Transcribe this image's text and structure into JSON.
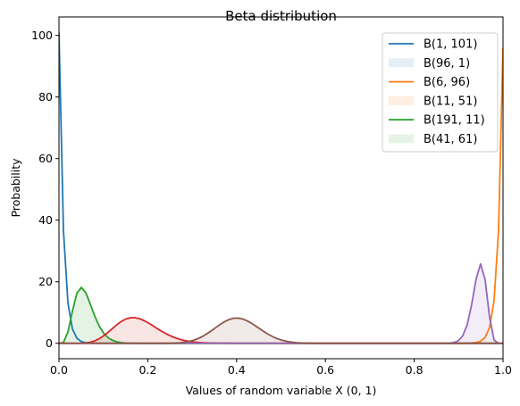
{
  "chart_data": {
    "type": "line",
    "title": "Beta distribution",
    "xlabel": "Values of random variable X (0, 1)",
    "ylabel": "Probability",
    "xlim": [
      0,
      1
    ],
    "ylim": [
      -5,
      106
    ],
    "x_ticks": [
      "0.0",
      "0.2",
      "0.4",
      "0.6",
      "0.8",
      "1.0"
    ],
    "y_ticks": [
      "0",
      "20",
      "40",
      "60",
      "80",
      "100"
    ],
    "grid": false,
    "legend_position": "top-right",
    "legend": [
      {
        "label": "B(1, 101)",
        "kind": "line",
        "color": "#1f77b4"
      },
      {
        "label": "B(96, 1)",
        "kind": "fill",
        "color": "#1f77b4"
      },
      {
        "label": "B(6, 96)",
        "kind": "line",
        "color": "#ff7f0e"
      },
      {
        "label": "B(11, 51)",
        "kind": "fill",
        "color": "#ff7f0e"
      },
      {
        "label": "B(191, 11)",
        "kind": "line",
        "color": "#2ca02c"
      },
      {
        "label": "B(41, 61)",
        "kind": "fill",
        "color": "#2ca02c"
      }
    ],
    "series": [
      {
        "alpha": 1,
        "beta": 101,
        "color": "#1f77b4",
        "filled": false
      },
      {
        "alpha": 96,
        "beta": 1,
        "color": "#ff7f0e",
        "filled": false
      },
      {
        "alpha": 6,
        "beta": 96,
        "color": "#2ca02c",
        "filled": true
      },
      {
        "alpha": 11,
        "beta": 51,
        "color": "#d62728",
        "filled": true
      },
      {
        "alpha": 191,
        "beta": 11,
        "color": "#9467bd",
        "filled": true
      },
      {
        "alpha": 41,
        "beta": 61,
        "color": "#8c564b",
        "filled": true
      }
    ],
    "sample_count": 100
  }
}
